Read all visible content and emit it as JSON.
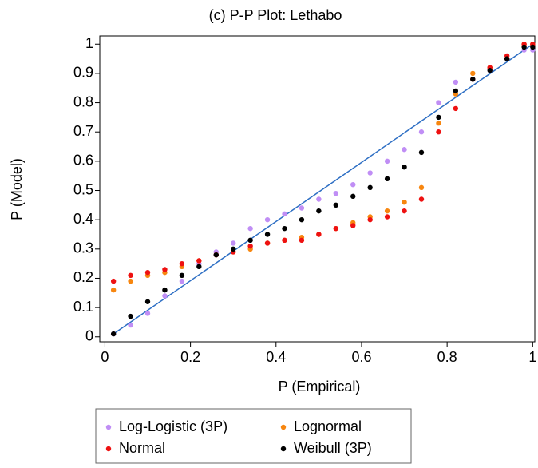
{
  "chart_data": {
    "type": "scatter",
    "title": "(c) P-P Plot: Lethabo",
    "x_label": "P (Empirical)",
    "y_label": "P (Model)",
    "x": [
      0.02,
      0.06,
      0.1,
      0.14,
      0.18,
      0.22,
      0.26,
      0.3,
      0.34,
      0.38,
      0.42,
      0.46,
      0.5,
      0.54,
      0.58,
      0.62,
      0.66,
      0.7,
      0.74,
      0.78,
      0.82,
      0.86,
      0.9,
      0.94,
      0.98,
      1.0
    ],
    "series": [
      {
        "name": "Log-Logistic (3P)",
        "color": "#c08ef5",
        "values": [
          0.01,
          0.04,
          0.08,
          0.14,
          0.19,
          0.25,
          0.29,
          0.32,
          0.37,
          0.4,
          0.42,
          0.44,
          0.47,
          0.49,
          0.52,
          0.56,
          0.6,
          0.64,
          0.7,
          0.8,
          0.87,
          0.88,
          0.91,
          0.95,
          0.98,
          0.98
        ]
      },
      {
        "name": "Lognormal",
        "color": "#f7860f",
        "values": [
          0.16,
          0.19,
          0.21,
          0.22,
          0.24,
          0.26,
          0.28,
          0.29,
          0.3,
          0.32,
          0.33,
          0.34,
          0.35,
          0.37,
          0.39,
          0.41,
          0.43,
          0.46,
          0.51,
          0.73,
          0.83,
          0.9,
          0.92,
          0.95,
          1.0,
          1.0
        ]
      },
      {
        "name": "Normal",
        "color": "#ee1111",
        "values": [
          0.19,
          0.21,
          0.22,
          0.23,
          0.25,
          0.26,
          0.28,
          0.29,
          0.31,
          0.32,
          0.33,
          0.33,
          0.35,
          0.37,
          0.38,
          0.4,
          0.41,
          0.43,
          0.47,
          0.7,
          0.78,
          0.88,
          0.92,
          0.96,
          1.0,
          1.0
        ]
      },
      {
        "name": "Weibull (3P)",
        "color": "#000000",
        "values": [
          0.01,
          0.07,
          0.12,
          0.16,
          0.21,
          0.24,
          0.28,
          0.3,
          0.33,
          0.35,
          0.37,
          0.4,
          0.43,
          0.45,
          0.48,
          0.51,
          0.54,
          0.58,
          0.63,
          0.75,
          0.84,
          0.88,
          0.91,
          0.95,
          0.99,
          0.99
        ]
      }
    ],
    "reference_line": {
      "x": [
        0.02,
        1
      ],
      "y": [
        0.01,
        1
      ],
      "color": "#2e6fc4"
    },
    "xlim": [
      -0.012,
      1.005
    ],
    "ylim": [
      -0.017,
      1.028
    ],
    "xticks": [
      0,
      0.2,
      0.4,
      0.6,
      0.8,
      1
    ],
    "yticks": [
      0,
      0.1,
      0.2,
      0.3,
      0.4,
      0.5,
      0.6,
      0.7,
      0.8,
      0.9,
      1
    ]
  }
}
